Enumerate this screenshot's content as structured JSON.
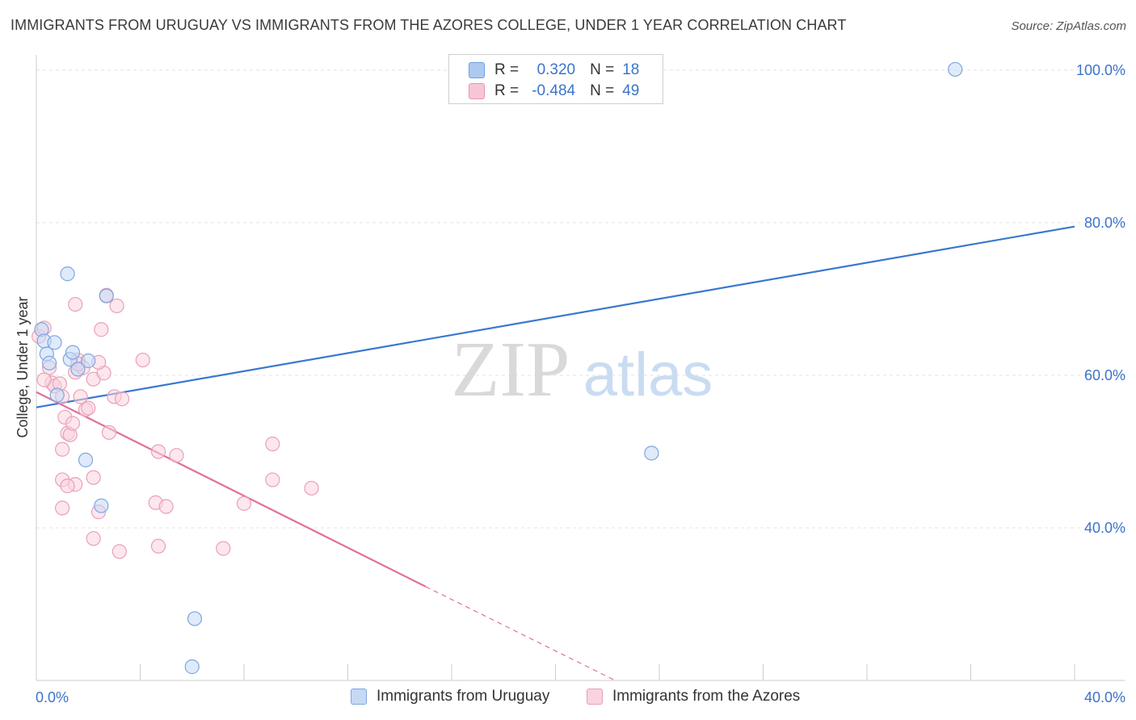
{
  "title": "IMMIGRANTS FROM URUGUAY VS IMMIGRANTS FROM THE AZORES COLLEGE, UNDER 1 YEAR CORRELATION CHART",
  "source": "Source: ZipAtlas.com",
  "watermark": {
    "zip": "ZIP",
    "atlas": "atlas"
  },
  "stats": [
    {
      "r_label": "R =",
      "r_value": "0.320",
      "n_label": "N =",
      "n_value": "18",
      "color": "#aec9f0",
      "border": "#6f9ee0"
    },
    {
      "r_label": "R =",
      "r_value": "-0.484",
      "n_label": "N =",
      "n_value": "49",
      "color": "#f7c6d5",
      "border": "#e895b0"
    }
  ],
  "legend": [
    {
      "label": "Immigrants from Uruguay",
      "color": "#c5d9f5",
      "border": "#7fa6e0"
    },
    {
      "label": "Immigrants from the Azores",
      "color": "#f9d3df",
      "border": "#e9a0b8"
    }
  ],
  "chart_data": {
    "type": "scatter",
    "title": "IMMIGRANTS FROM URUGUAY VS IMMIGRANTS FROM THE AZORES COLLEGE, UNDER 1 YEAR CORRELATION CHART",
    "xlabel": "",
    "ylabel": "College, Under 1 year",
    "xlim": [
      0,
      40
    ],
    "ylim": [
      20,
      102
    ],
    "x_tick_labels": [
      {
        "value": 0,
        "label": "0.0%"
      },
      {
        "value": 40,
        "label": "40.0%"
      }
    ],
    "y_tick_labels": [
      {
        "value": 100,
        "label": "100.0%"
      },
      {
        "value": 80,
        "label": "80.0%"
      },
      {
        "value": 60,
        "label": "60.0%"
      },
      {
        "value": 40,
        "label": "40.0%"
      }
    ],
    "series": [
      {
        "name": "Immigrants from Uruguay",
        "color": "#3a78d0",
        "fill": "#c5d9f5",
        "stroke": "#7fa6e0",
        "points": [
          [
            0.2,
            66
          ],
          [
            0.3,
            64.5
          ],
          [
            0.4,
            62.8
          ],
          [
            0.5,
            61.6
          ],
          [
            0.7,
            64.3
          ],
          [
            0.8,
            57.4
          ],
          [
            1.2,
            73.3
          ],
          [
            1.3,
            62.1
          ],
          [
            1.4,
            63
          ],
          [
            1.6,
            60.8
          ],
          [
            2.0,
            61.9
          ],
          [
            2.7,
            70.4
          ],
          [
            1.9,
            48.9
          ],
          [
            2.5,
            42.9
          ],
          [
            6.1,
            28.1
          ],
          [
            6.0,
            21.8
          ],
          [
            23.7,
            49.8
          ],
          [
            35.4,
            100.1
          ]
        ],
        "trendline": {
          "x0": 0,
          "y0": 55.8,
          "x1": 40,
          "y1": 79.5
        }
      },
      {
        "name": "Immigrants from the Azores",
        "color": "#e0709a",
        "fill": "#f9d3df",
        "stroke": "#e9a0b8",
        "points": [
          [
            0.1,
            65.1
          ],
          [
            0.3,
            66.2
          ],
          [
            0.5,
            61.0
          ],
          [
            0.6,
            59.0
          ],
          [
            0.7,
            58.6
          ],
          [
            0.9,
            58.9
          ],
          [
            1.0,
            57.2
          ],
          [
            1.1,
            54.5
          ],
          [
            1.2,
            52.4
          ],
          [
            1.3,
            52.2
          ],
          [
            1.0,
            50.3
          ],
          [
            1.4,
            53.7
          ],
          [
            1.5,
            60.4
          ],
          [
            1.7,
            57.2
          ],
          [
            1.9,
            55.5
          ],
          [
            2.0,
            55.7
          ],
          [
            1.6,
            62.0
          ],
          [
            1.8,
            61.0
          ],
          [
            2.2,
            59.5
          ],
          [
            2.6,
            60.3
          ],
          [
            2.4,
            61.7
          ],
          [
            3.0,
            57.2
          ],
          [
            3.3,
            56.9
          ],
          [
            2.8,
            52.5
          ],
          [
            1.5,
            69.3
          ],
          [
            2.7,
            70.5
          ],
          [
            3.1,
            69.1
          ],
          [
            4.1,
            62.0
          ],
          [
            1.0,
            46.3
          ],
          [
            1.5,
            45.7
          ],
          [
            1.2,
            45.5
          ],
          [
            2.2,
            46.6
          ],
          [
            1.0,
            42.6
          ],
          [
            2.4,
            42.1
          ],
          [
            4.6,
            43.3
          ],
          [
            5.0,
            42.8
          ],
          [
            4.7,
            50.0
          ],
          [
            5.4,
            49.5
          ],
          [
            2.2,
            38.6
          ],
          [
            4.7,
            37.6
          ],
          [
            3.2,
            36.9
          ],
          [
            7.2,
            37.3
          ],
          [
            8.0,
            43.2
          ],
          [
            9.1,
            51.0
          ],
          [
            9.1,
            46.3
          ],
          [
            10.6,
            45.2
          ],
          [
            0.3,
            59.4
          ],
          [
            1.6,
            61.5
          ],
          [
            2.5,
            66.0
          ]
        ],
        "trendline": {
          "x0": 0,
          "y0": 57.8,
          "x1": 15,
          "y1": 32.3,
          "dash_x1": 22.3,
          "dash_y1": 20.0
        }
      }
    ]
  }
}
